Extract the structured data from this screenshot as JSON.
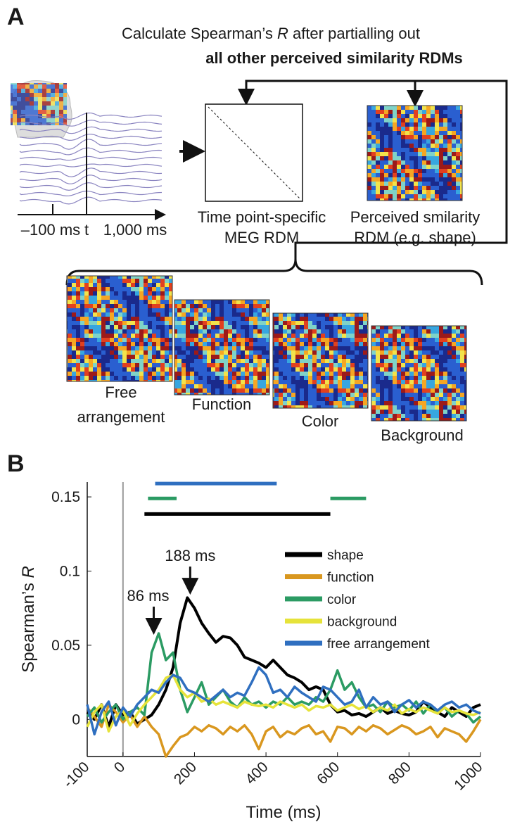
{
  "panel_a": {
    "label": "A",
    "header_pre": "Calculate Spearman’s ",
    "header_r": "R",
    "header_post": " after partialling out",
    "header_bold": "all other perceived similarity RDMs",
    "meg_tick_start": "–100 ms",
    "meg_tick_t": "t",
    "meg_tick_end": "1,000 ms",
    "meg_rdm_line1": "Time point-specific",
    "meg_rdm_line2": "MEG RDM",
    "perceived_line1": "Perceived smilarity",
    "perceived_line2": "RDM (e.g. shape)",
    "rdm_free_line1": "Free",
    "rdm_free_line2": "arrangement",
    "rdm_function": "Function",
    "rdm_color": "Color",
    "rdm_background": "Background"
  },
  "chart_data": {
    "type": "line",
    "panel_label": "B",
    "xlabel": "Time (ms)",
    "ylabel_pre": "Spearman’s ",
    "ylabel_r": "R",
    "xlim": [
      -100,
      1000
    ],
    "xticks": [
      -100,
      0,
      200,
      400,
      600,
      800,
      1000
    ],
    "ylim": [
      -0.025,
      0.16
    ],
    "yticks": [
      0,
      0.05,
      0.1,
      0.15
    ],
    "reference_line_x": 0,
    "legend": "upper right",
    "x": [
      -100,
      -80,
      -60,
      -40,
      -20,
      0,
      20,
      40,
      60,
      80,
      100,
      120,
      140,
      160,
      180,
      200,
      220,
      240,
      260,
      280,
      300,
      320,
      340,
      360,
      380,
      400,
      420,
      440,
      460,
      480,
      500,
      520,
      540,
      560,
      580,
      600,
      620,
      640,
      660,
      680,
      700,
      720,
      740,
      760,
      780,
      800,
      820,
      840,
      860,
      880,
      900,
      920,
      940,
      960,
      980,
      1000
    ],
    "series": [
      {
        "name": "shape",
        "color": "#000000",
        "values": [
          0.005,
          0,
          0.01,
          -0.005,
          0.01,
          0.003,
          0.005,
          -0.003,
          0,
          0.003,
          0.01,
          0.02,
          0.035,
          0.065,
          0.082,
          0.075,
          0.065,
          0.058,
          0.052,
          0.056,
          0.055,
          0.05,
          0.042,
          0.04,
          0.038,
          0.035,
          0.04,
          0.035,
          0.03,
          0.028,
          0.025,
          0.02,
          0.022,
          0.02,
          0.01,
          0.005,
          0.006,
          0.003,
          0.004,
          0.002,
          0.005,
          0.008,
          0.004,
          0.006,
          0.004,
          0.003,
          0.005,
          0.012,
          0.008,
          0.005,
          0.002,
          0.008,
          0.005,
          0.002,
          0.008,
          0.01
        ]
      },
      {
        "name": "function",
        "color": "#d9971f",
        "values": [
          0.008,
          0.002,
          -0.005,
          0.01,
          0.005,
          -0.002,
          0.003,
          -0.005,
          0.002,
          -0.005,
          -0.01,
          -0.025,
          -0.018,
          -0.012,
          -0.01,
          -0.005,
          -0.008,
          -0.004,
          -0.006,
          -0.01,
          -0.005,
          -0.008,
          -0.004,
          -0.01,
          -0.02,
          -0.008,
          -0.005,
          -0.012,
          -0.008,
          -0.01,
          -0.006,
          -0.004,
          -0.01,
          -0.008,
          -0.015,
          -0.005,
          -0.006,
          -0.01,
          -0.005,
          -0.008,
          -0.004,
          -0.006,
          -0.01,
          -0.007,
          -0.004,
          -0.006,
          -0.01,
          -0.008,
          -0.005,
          -0.012,
          -0.006,
          -0.008,
          -0.01,
          -0.015,
          -0.008,
          0
        ]
      },
      {
        "name": "color",
        "color": "#2b9b63",
        "values": [
          0.002,
          0.008,
          -0.002,
          0.005,
          0.01,
          0,
          0.005,
          0.008,
          0.003,
          0.045,
          0.058,
          0.04,
          0.045,
          0.02,
          0.005,
          0.015,
          0.025,
          0.01,
          0.015,
          0.02,
          0.012,
          0.008,
          0.015,
          0.01,
          0.012,
          0.008,
          0.012,
          0.01,
          0.015,
          0.01,
          0.012,
          0.01,
          0.015,
          0.012,
          0.02,
          0.033,
          0.02,
          0.025,
          0.015,
          0.008,
          0.01,
          0.005,
          0.012,
          0.008,
          0.01,
          0.006,
          0.012,
          0.004,
          0.01,
          0.005,
          0.008,
          0.002,
          0.006,
          0.004,
          -0.002,
          0.002
        ]
      },
      {
        "name": "background",
        "color": "#e6e33a",
        "values": [
          -0.005,
          0.005,
          0.01,
          -0.008,
          0.002,
          0.006,
          -0.004,
          0.004,
          0.01,
          0.015,
          0.02,
          0.028,
          0.03,
          0.02,
          0.015,
          0.018,
          0.012,
          0.014,
          0.01,
          0.012,
          0.01,
          0.008,
          0.012,
          0.01,
          0.009,
          0.01,
          0.008,
          0.012,
          0.01,
          0.008,
          0.01,
          0.006,
          0.009,
          0.008,
          0.01,
          0.006,
          0.008,
          0.01,
          0.007,
          0.009,
          0.005,
          0.008,
          0.006,
          0.01,
          0.004,
          0.007,
          0.005,
          0.008,
          0.006,
          0.004,
          0.008,
          0.005,
          0.006,
          0.004,
          0.003,
          0.005
        ]
      },
      {
        "name": "free arrangement",
        "color": "#2f6fc0",
        "values": [
          0.01,
          -0.01,
          0.005,
          0.012,
          -0.004,
          0.008,
          0.002,
          0.01,
          0.015,
          0.02,
          0.018,
          0.025,
          0.03,
          0.028,
          0.02,
          0.018,
          0.015,
          0.012,
          0.016,
          0.02,
          0.015,
          0.018,
          0.016,
          0.025,
          0.035,
          0.03,
          0.018,
          0.02,
          0.015,
          0.022,
          0.018,
          0.015,
          0.012,
          0.022,
          0.02,
          0.015,
          0.01,
          0.012,
          0.02,
          0.008,
          0.015,
          0.01,
          0.012,
          0.005,
          0.01,
          0.013,
          0.008,
          0.012,
          0.01,
          0.006,
          0.01,
          0.012,
          0.008,
          0.01,
          0.006,
          0.004
        ]
      }
    ],
    "significance": [
      {
        "series": 4,
        "start": 90,
        "end": 430,
        "y": 0.159
      },
      {
        "series": 2,
        "start": 70,
        "end": 150,
        "y": 0.149
      },
      {
        "series": 2,
        "start": 580,
        "end": 680,
        "y": 0.149
      },
      {
        "series": 0,
        "start": 60,
        "end": 580,
        "y": 0.1385
      }
    ],
    "annotations": [
      {
        "text": "188 ms",
        "x": 188,
        "y": 0.085
      },
      {
        "text": "86 ms",
        "x": 86,
        "y": 0.058
      }
    ]
  }
}
